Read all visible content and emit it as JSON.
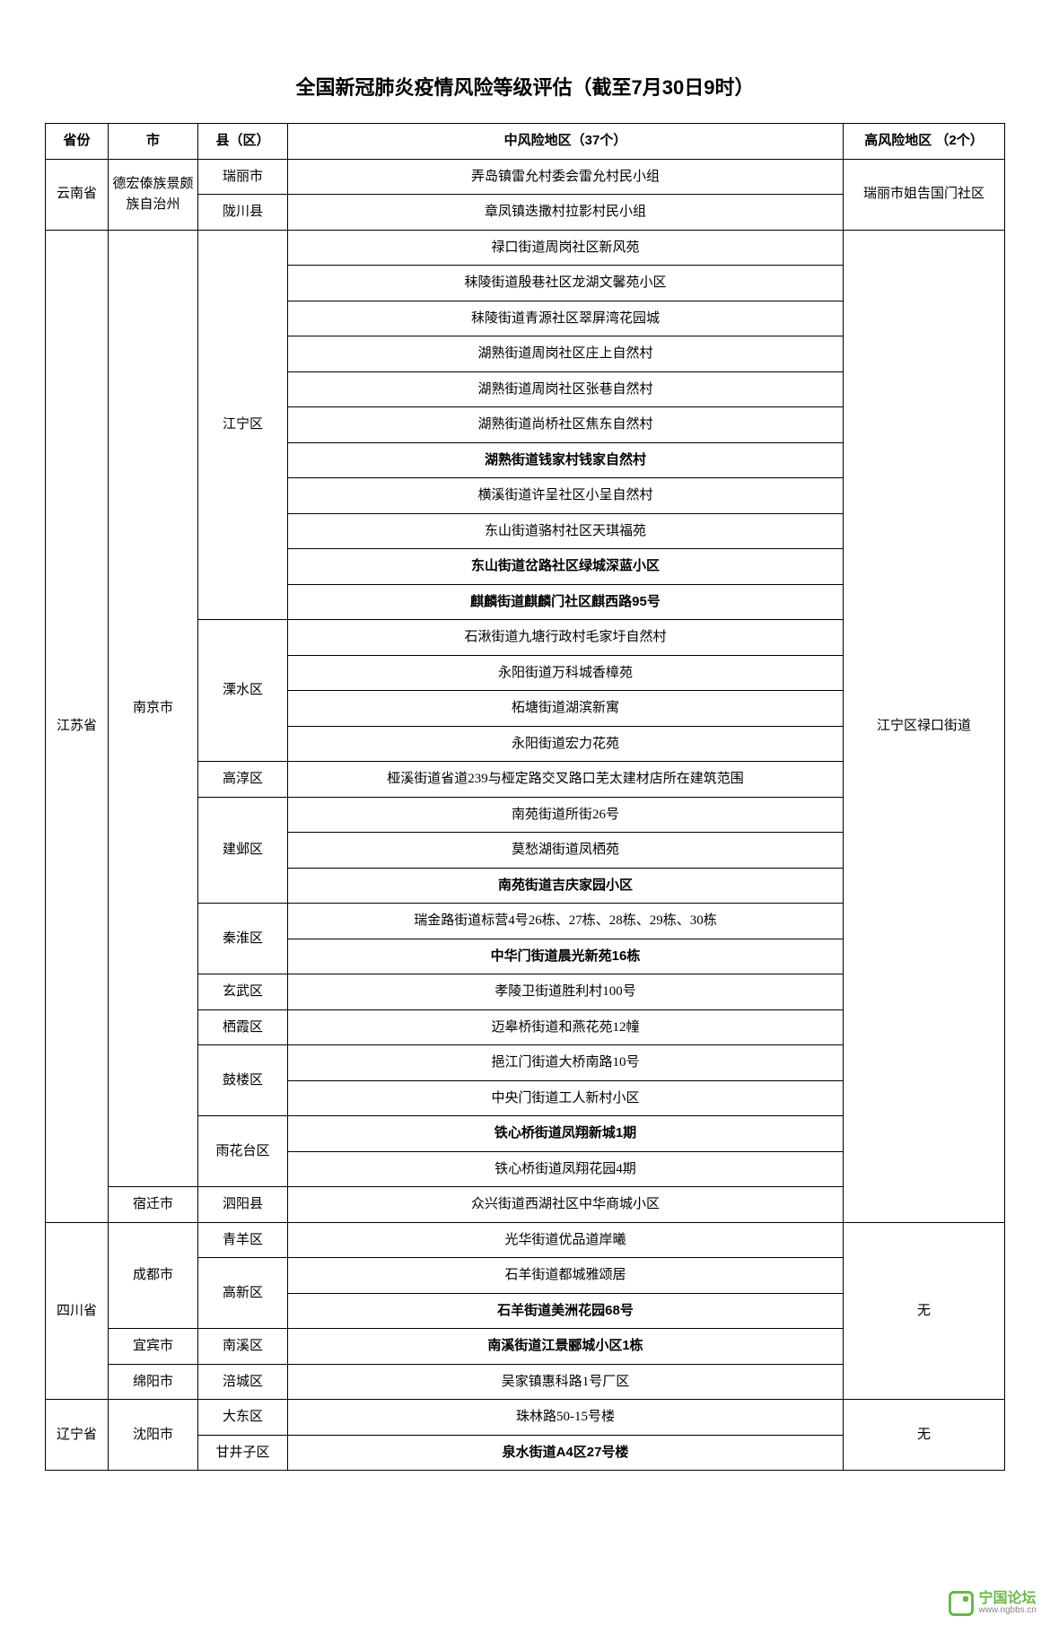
{
  "title": "全国新冠肺炎疫情风险等级评估（截至7月30日9时）",
  "headers": {
    "province": "省份",
    "city": "市",
    "district": "县（区）",
    "mid": "中风险地区（37个）",
    "high": "高风险地区 （2个）"
  },
  "watermark": {
    "name": "宁国论坛",
    "url": "www.ngbbs.cn"
  },
  "rows": [
    {
      "prov": "云南省",
      "prov_rs": 2,
      "city": "德宏傣族景颇族自治州",
      "city_rs": 2,
      "dist": "瑞丽市",
      "dist_rs": 1,
      "mid": "弄岛镇雷允村委会雷允村民小组",
      "bold": false,
      "high": "瑞丽市姐告国门社区",
      "high_rs": 2
    },
    {
      "dist": "陇川县",
      "dist_rs": 1,
      "mid": "章凤镇迭撒村拉影村民小组",
      "bold": false
    },
    {
      "prov": "江苏省",
      "prov_rs": 28,
      "city": "南京市",
      "city_rs": 27,
      "dist": "江宁区",
      "dist_rs": 11,
      "mid": "禄口街道周岗社区新风苑",
      "bold": false,
      "high": "江宁区禄口街道",
      "high_rs": 28
    },
    {
      "mid": "秣陵街道殷巷社区龙湖文馨苑小区",
      "bold": false
    },
    {
      "mid": "秣陵街道青源社区翠屏湾花园城",
      "bold": false
    },
    {
      "mid": "湖熟街道周岗社区庄上自然村",
      "bold": false
    },
    {
      "mid": "湖熟街道周岗社区张巷自然村",
      "bold": false
    },
    {
      "mid": "湖熟街道尚桥社区焦东自然村",
      "bold": false
    },
    {
      "mid": "湖熟街道钱家村钱家自然村",
      "bold": true
    },
    {
      "mid": "横溪街道许呈社区小呈自然村",
      "bold": false
    },
    {
      "mid": "东山街道骆村社区天琪福苑",
      "bold": false
    },
    {
      "mid": "东山街道岔路社区绿城深蓝小区",
      "bold": true
    },
    {
      "mid": "麒麟街道麒麟门社区麒西路95号",
      "bold": true
    },
    {
      "dist": "溧水区",
      "dist_rs": 4,
      "mid": "石湫街道九塘行政村毛家圩自然村",
      "bold": false
    },
    {
      "mid": "永阳街道万科城香樟苑",
      "bold": false
    },
    {
      "mid": "柘塘街道湖滨新寓",
      "bold": false
    },
    {
      "mid": "永阳街道宏力花苑",
      "bold": false
    },
    {
      "dist": "高淳区",
      "dist_rs": 1,
      "mid": "桠溪街道省道239与桠定路交叉路口芜太建材店所在建筑范围",
      "bold": false
    },
    {
      "dist": "建邺区",
      "dist_rs": 3,
      "mid": "南苑街道所街26号",
      "bold": false
    },
    {
      "mid": "莫愁湖街道凤栖苑",
      "bold": false
    },
    {
      "mid": "南苑街道吉庆家园小区",
      "bold": true
    },
    {
      "dist": "秦淮区",
      "dist_rs": 2,
      "mid": "瑞金路街道标营4号26栋、27栋、28栋、29栋、30栋",
      "bold": false
    },
    {
      "mid": "中华门街道晨光新苑16栋",
      "bold": true
    },
    {
      "dist": "玄武区",
      "dist_rs": 1,
      "mid": "孝陵卫街道胜利村100号",
      "bold": false
    },
    {
      "dist": "栖霞区",
      "dist_rs": 1,
      "mid": "迈皋桥街道和燕花苑12幢",
      "bold": false
    },
    {
      "dist": "鼓楼区",
      "dist_rs": 2,
      "mid": "挹江门街道大桥南路10号",
      "bold": false
    },
    {
      "mid": "中央门街道工人新村小区",
      "bold": false
    },
    {
      "dist": "雨花台区",
      "dist_rs": 2,
      "mid": "铁心桥街道凤翔新城1期",
      "bold": true
    },
    {
      "mid": "铁心桥街道凤翔花园4期",
      "bold": false
    },
    {
      "city": "宿迁市",
      "city_rs": 1,
      "dist": "泗阳县",
      "dist_rs": 1,
      "mid": "众兴街道西湖社区中华商城小区",
      "bold": false
    },
    {
      "prov": "四川省",
      "prov_rs": 5,
      "city": "成都市",
      "city_rs": 3,
      "dist": "青羊区",
      "dist_rs": 1,
      "mid": "光华街道优品道岸曦",
      "bold": false,
      "high": "无",
      "high_rs": 5
    },
    {
      "dist": "高新区",
      "dist_rs": 2,
      "mid": "石羊街道都城雅颂居",
      "bold": false
    },
    {
      "mid": "石羊街道美洲花园68号",
      "bold": true
    },
    {
      "city": "宜宾市",
      "city_rs": 1,
      "dist": "南溪区",
      "dist_rs": 1,
      "mid": "南溪街道江景郦城小区1栋",
      "bold": true
    },
    {
      "city": "绵阳市",
      "city_rs": 1,
      "dist": "涪城区",
      "dist_rs": 1,
      "mid": "吴家镇惠科路1号厂区",
      "bold": false
    },
    {
      "prov": "辽宁省",
      "prov_rs": 2,
      "city": "沈阳市",
      "city_rs": 2,
      "dist": "大东区",
      "dist_rs": 1,
      "mid": "珠林路50-15号楼",
      "bold": false,
      "high": "无",
      "high_rs": 2
    },
    {
      "dist": "甘井子区",
      "dist_rs": 1,
      "mid": "泉水街道A4区27号楼",
      "bold": true
    }
  ]
}
